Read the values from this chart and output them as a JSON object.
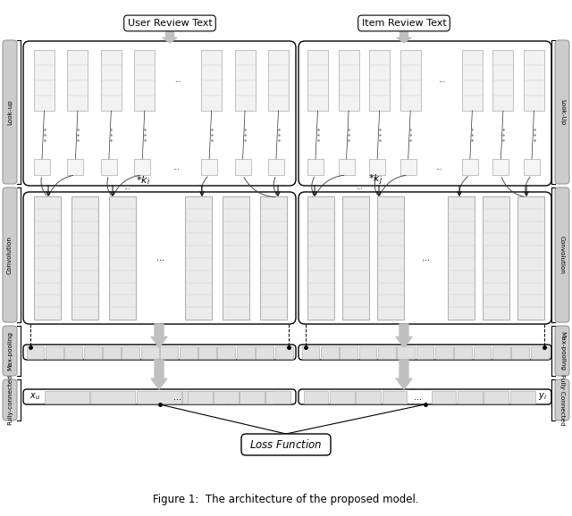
{
  "title": "Figure 1:  The architecture of the proposed model.",
  "user_label": "User Review Text",
  "item_label": "Item Review Text",
  "left_labels": [
    "Look-up",
    "Convolution",
    "Max-pooling",
    "Fully-connected"
  ],
  "right_labels": [
    "Look-Up",
    "Convolution",
    "Max-pooling",
    "Fully Connected"
  ],
  "xu_label": "$x_u$",
  "yi_label": "$y_i$",
  "loss_label": "Loss Function",
  "ki_label": "$* k_i$",
  "kj_label": "$* k_j$",
  "bg_color": "#ffffff",
  "bar_fill_light": "#e8e8e8",
  "bar_edge": "#aaaaaa",
  "arrow_gray": "#bbbbbb",
  "side_label_bg": "#cccccc",
  "side_label_edge": "#999999"
}
